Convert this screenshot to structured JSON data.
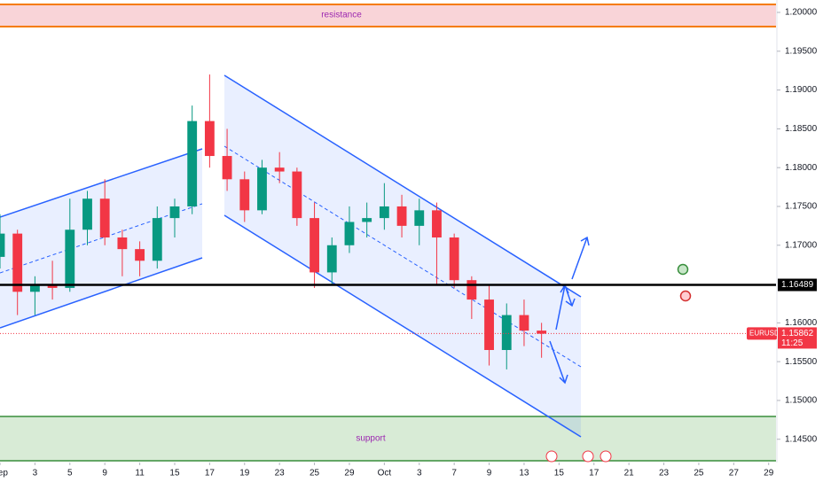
{
  "chart_data": {
    "type": "candlestick",
    "symbol": "EURUSD",
    "countdown": "11:25",
    "last_price": 1.15862,
    "level": 1.16489,
    "annotations": [
      "resistance",
      "support"
    ],
    "up_color": "#089981",
    "down_color": "#f23645",
    "x": [
      0,
      1,
      2,
      3,
      4,
      5,
      6,
      7,
      8,
      9,
      10,
      11,
      12,
      13,
      14,
      15,
      16,
      17,
      18,
      19,
      20,
      21,
      22,
      23,
      24,
      25,
      26,
      27,
      28,
      29,
      30,
      31
    ],
    "open": [
      1.1685,
      1.1715,
      1.164,
      1.165,
      1.1645,
      1.172,
      1.176,
      1.171,
      1.1695,
      1.168,
      1.1735,
      1.175,
      1.186,
      1.1815,
      1.1785,
      1.1745,
      1.18,
      1.1795,
      1.1735,
      1.1665,
      1.17,
      1.173,
      1.1735,
      1.175,
      1.1725,
      1.1745,
      1.171,
      1.1655,
      1.163,
      1.1565,
      1.161,
      1.159
    ],
    "high": [
      1.174,
      1.172,
      1.166,
      1.168,
      1.176,
      1.177,
      1.1785,
      1.172,
      1.1705,
      1.175,
      1.176,
      1.188,
      1.192,
      1.185,
      1.1795,
      1.181,
      1.182,
      1.18,
      1.1755,
      1.171,
      1.175,
      1.1755,
      1.178,
      1.1765,
      1.176,
      1.1755,
      1.1715,
      1.166,
      1.165,
      1.1625,
      1.163,
      1.16
    ],
    "low": [
      1.167,
      1.161,
      1.161,
      1.163,
      1.164,
      1.17,
      1.17,
      1.166,
      1.166,
      1.167,
      1.171,
      1.174,
      1.18,
      1.177,
      1.173,
      1.174,
      1.178,
      1.1725,
      1.1645,
      1.165,
      1.169,
      1.171,
      1.172,
      1.171,
      1.17,
      1.165,
      1.1645,
      1.1605,
      1.1545,
      1.154,
      1.157,
      1.1555
    ],
    "close": [
      1.1715,
      1.164,
      1.165,
      1.1645,
      1.172,
      1.176,
      1.171,
      1.1695,
      1.168,
      1.1735,
      1.175,
      1.186,
      1.1815,
      1.1785,
      1.1745,
      1.18,
      1.1795,
      1.1735,
      1.1665,
      1.17,
      1.173,
      1.1735,
      1.175,
      1.1725,
      1.1745,
      1.171,
      1.1655,
      1.163,
      1.1565,
      1.161,
      1.159,
      1.1586
    ],
    "xlim": [
      0,
      44.42
    ],
    "xticks": [
      {
        "value": 0,
        "label": "Sep"
      },
      {
        "value": 2,
        "label": "3"
      },
      {
        "value": 4,
        "label": "5"
      },
      {
        "value": 6,
        "label": "9"
      },
      {
        "value": 8,
        "label": "11"
      },
      {
        "value": 10,
        "label": "15"
      },
      {
        "value": 12,
        "label": "17"
      },
      {
        "value": 14,
        "label": "19"
      },
      {
        "value": 16,
        "label": "23"
      },
      {
        "value": 18,
        "label": "25"
      },
      {
        "value": 20,
        "label": "29"
      },
      {
        "value": 22,
        "label": "Oct"
      },
      {
        "value": 24,
        "label": "3"
      },
      {
        "value": 26,
        "label": "7"
      },
      {
        "value": 28,
        "label": "9"
      },
      {
        "value": 30,
        "label": "13"
      },
      {
        "value": 32,
        "label": "15"
      },
      {
        "value": 34,
        "label": "17"
      },
      {
        "value": 36,
        "label": "21"
      },
      {
        "value": 38,
        "label": "23"
      },
      {
        "value": 40,
        "label": "25"
      },
      {
        "value": 42,
        "label": "27"
      },
      {
        "value": 44,
        "label": "29"
      }
    ],
    "ylim": [
      1.142,
      1.2016
    ],
    "yticks": [
      {
        "value": 1.2,
        "label": "1.20000"
      },
      {
        "value": 1.195,
        "label": "1.19500"
      },
      {
        "value": 1.19,
        "label": "1.19000"
      },
      {
        "value": 1.185,
        "label": "1.18500"
      },
      {
        "value": 1.18,
        "label": "1.18000"
      },
      {
        "value": 1.175,
        "label": "1.17500"
      },
      {
        "value": 1.17,
        "label": "1.17000"
      },
      {
        "value": 1.16,
        "label": "1.16000"
      },
      {
        "value": 1.155,
        "label": "1.15500"
      },
      {
        "value": 1.15,
        "label": "1.15000"
      },
      {
        "value": 1.145,
        "label": "1.14500"
      }
    ]
  }
}
